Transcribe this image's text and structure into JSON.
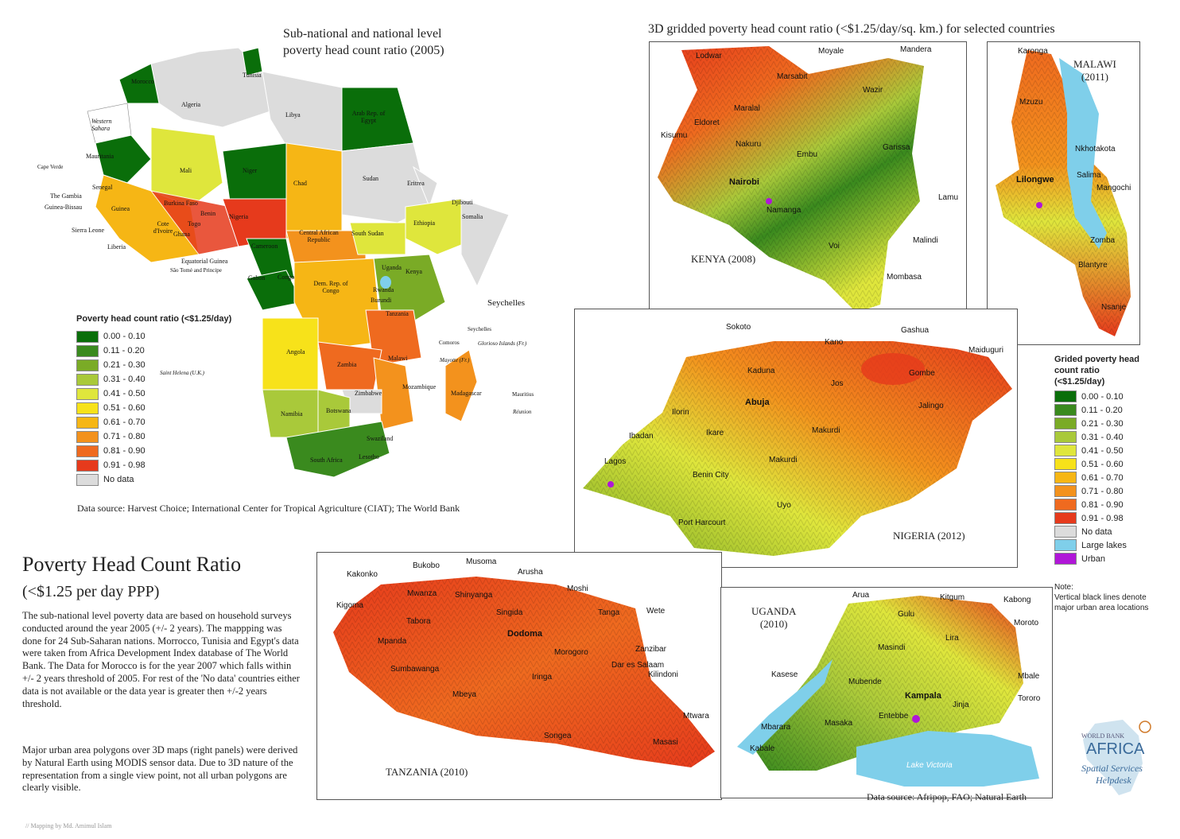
{
  "left_map": {
    "title_line1": "Sub-national and national level",
    "title_line2": "poverty head count ratio (2005)",
    "legend_title": "Poverty head count ratio (<$1.25/day)",
    "legend": [
      {
        "label": "0.00 - 0.10",
        "color": "#0a6e0a"
      },
      {
        "label": "0.11 - 0.20",
        "color": "#3a8a1e"
      },
      {
        "label": "0.21 - 0.30",
        "color": "#7aab26"
      },
      {
        "label": "0.31 - 0.40",
        "color": "#a9c93a"
      },
      {
        "label": "0.41 - 0.50",
        "color": "#dfe63c"
      },
      {
        "label": "0.51 - 0.60",
        "color": "#f7e21a"
      },
      {
        "label": "0.61 - 0.70",
        "color": "#f6b615"
      },
      {
        "label": "0.71 - 0.80",
        "color": "#f3921d"
      },
      {
        "label": "0.81 - 0.90",
        "color": "#ef6a1f"
      },
      {
        "label": "0.91 - 0.98",
        "color": "#e63a1c"
      },
      {
        "label": "No data",
        "color": "#dcdcdc"
      }
    ],
    "data_source": "Data source: Harvest Choice; International Center for Tropical Agriculture (CIAT); The World Bank",
    "labels": {
      "morocco": "Morocco",
      "tunisia": "Tunisia",
      "algeria": "Algeria",
      "libya": "Libya",
      "egypt": "Arab Rep. of Egypt",
      "western_sahara": "Western Sahara",
      "mauritania": "Mauritania",
      "mali": "Mali",
      "niger": "Niger",
      "chad": "Chad",
      "sudan": "Sudan",
      "eritrea": "Eritrea",
      "djibouti": "Djibouti",
      "somalia": "Somalia",
      "ethiopia": "Ethiopia",
      "senegal": "Senegal",
      "gambia": "The Gambia",
      "guinea_bissau": "Guinea-Bissau",
      "guinea": "Guinea",
      "sierra_leone": "Sierra Leone",
      "liberia": "Liberia",
      "cote": "Cote d'Ivoire",
      "burkina": "Burkina Faso",
      "ghana": "Ghana",
      "togo": "Togo",
      "benin": "Benin",
      "nigeria": "Nigeria",
      "cameroon": "Cameroon",
      "car": "Central African Republic",
      "south_sudan": "South Sudan",
      "eq_guinea": "Equatorial Guinea",
      "sao_tome": "São Tomé and Principe",
      "gabon": "Gabon",
      "congo": "Congo",
      "drc": "Dem. Rep. of Congo",
      "uganda": "Uganda",
      "kenya": "Kenya",
      "rwanda": "Rwanda",
      "burundi": "Burundi",
      "tanzania": "Tanzania",
      "angola": "Angola",
      "zambia": "Zambia",
      "malawi": "Malawi",
      "mozambique": "Mozambique",
      "zimbabwe": "Zimbabwe",
      "namibia": "Namibia",
      "botswana": "Botswana",
      "south_africa": "South Africa",
      "swaziland": "Swaziland",
      "lesotho": "Lesotho",
      "madagascar": "Madagascar",
      "comoros": "Comoros",
      "mayotte": "Mayotte (Fr.)",
      "glorioso": "Glorioso Islands (Fr.)",
      "seychelles_small": "Seychelles",
      "seychelles": "Seychelles",
      "mauritius": "Mauritius",
      "reunion": "Réunion",
      "cape_verde": "Cape Verde",
      "st_helena": "Saint Helena (U.K.)"
    }
  },
  "right_title": "3D gridded poverty head count ratio (<$1.25/day/sq. km.) for selected countries",
  "kenya": {
    "caption": "KENYA (2008)",
    "cities": [
      "Lodwar",
      "Moyale",
      "Mandera",
      "Marsabit",
      "Wazir",
      "Maralal",
      "Eldoret",
      "Kisumu",
      "Nakuru",
      "Embu",
      "Garissa",
      "Nairobi",
      "Namanga",
      "Lamu",
      "Malindi",
      "Voi",
      "Mombasa"
    ]
  },
  "malawi": {
    "caption_line1": "MALAWI",
    "caption_line2": "(2011)",
    "cities": [
      "Karonga",
      "Mzuzu",
      "Nkhotakota",
      "Salima",
      "Lilongwe",
      "Mangochi",
      "Zomba",
      "Blantyre",
      "Nsanje"
    ]
  },
  "nigeria": {
    "caption": "NIGERIA (2012)",
    "cities": [
      "Sokoto",
      "Kano",
      "Gashua",
      "Maiduguri",
      "Kaduna",
      "Gombe",
      "Jos",
      "Abuja",
      "Jalingo",
      "Ilorin",
      "Ibadan",
      "Ikare",
      "Makurdi",
      "Lagos",
      "Makurdi",
      "Benin City",
      "Uyo",
      "Port Harcourt"
    ]
  },
  "tanzania": {
    "caption": "TANZANIA (2010)",
    "cities": [
      "Kakonko",
      "Bukobo",
      "Musoma",
      "Arusha",
      "Mwanza",
      "Shinyanga",
      "Moshi",
      "Kigoma",
      "Tabora",
      "Singida",
      "Tanga",
      "Wete",
      "Dodoma",
      "Mpanda",
      "Morogoro",
      "Zanzibar",
      "Dar es Salaam",
      "Kilindoni",
      "Sumbawanga",
      "Iringa",
      "Mbeya",
      "Songea",
      "Mtwara",
      "Masasi"
    ]
  },
  "uganda": {
    "caption_line1": "UGANDA",
    "caption_line2": "(2010)",
    "lake": "Lake Victoria",
    "cities": [
      "Arua",
      "Kitgum",
      "Kabong",
      "Gulu",
      "Moroto",
      "Lira",
      "Masindi",
      "Kasese",
      "Mbale",
      "Mubende",
      "Kampala",
      "Tororo",
      "Jinja",
      "Entebbe",
      "Masaka",
      "Mbarara",
      "Kabale"
    ]
  },
  "legend_right": {
    "title": "Grided poverty head count ratio (<$1.25/day)",
    "items": [
      {
        "label": "0.00 - 0.10",
        "color": "#0a6e0a"
      },
      {
        "label": "0.11 - 0.20",
        "color": "#3a8a1e"
      },
      {
        "label": "0.21 - 0.30",
        "color": "#7aab26"
      },
      {
        "label": "0.31 - 0.40",
        "color": "#a9c93a"
      },
      {
        "label": "0.41 - 0.50",
        "color": "#dfe63c"
      },
      {
        "label": "0.51 - 0.60",
        "color": "#f7e21a"
      },
      {
        "label": "0.61 - 0.70",
        "color": "#f6b615"
      },
      {
        "label": "0.71 - 0.80",
        "color": "#f3921d"
      },
      {
        "label": "0.81 - 0.90",
        "color": "#ef6a1f"
      },
      {
        "label": "0.91 - 0.98",
        "color": "#e63a1c"
      },
      {
        "label": "No data",
        "color": "#dcdcdc"
      },
      {
        "label": "Large lakes",
        "color": "#7fcfea"
      },
      {
        "label": "Urban",
        "color": "#b016d8"
      }
    ],
    "note_line1": "Note:",
    "note_line2": "Vertical black lines denote",
    "note_line3": "major urban area locations"
  },
  "main": {
    "title": "Poverty Head Count Ratio",
    "subtitle": "(<$1.25 per day PPP)",
    "paragraph1": "The sub-national level poverty data are based on household surveys conducted around the year 2005 (+/- 2 years). The mappping was done for 24 Sub-Saharan nations. Morrocco, Tunisia and Egypt's data were taken from Africa Development Index database of The World Bank. The Data for Morocco is for the year 2007 which falls within +/- 2 years threshold of 2005. For rest of the 'No data' countries either data is not available or the data year is greater then +/-2 years threshold.",
    "paragraph2": "Major urban area polygons over 3D maps (right panels) were derived by Natural Earth using MODIS sensor data. Due to 3D nature of the representation from a single view point, not all urban polygons are clearly visible."
  },
  "bottom_source": "Data source: Afripop, FAO; Natural Earth",
  "credit": "// Mapping by Md. Amimul Islam",
  "logo": {
    "line1": "WORLD BANK",
    "line2": "AFRICA",
    "line3": "Spatial Services",
    "line4": "Helpdesk"
  }
}
